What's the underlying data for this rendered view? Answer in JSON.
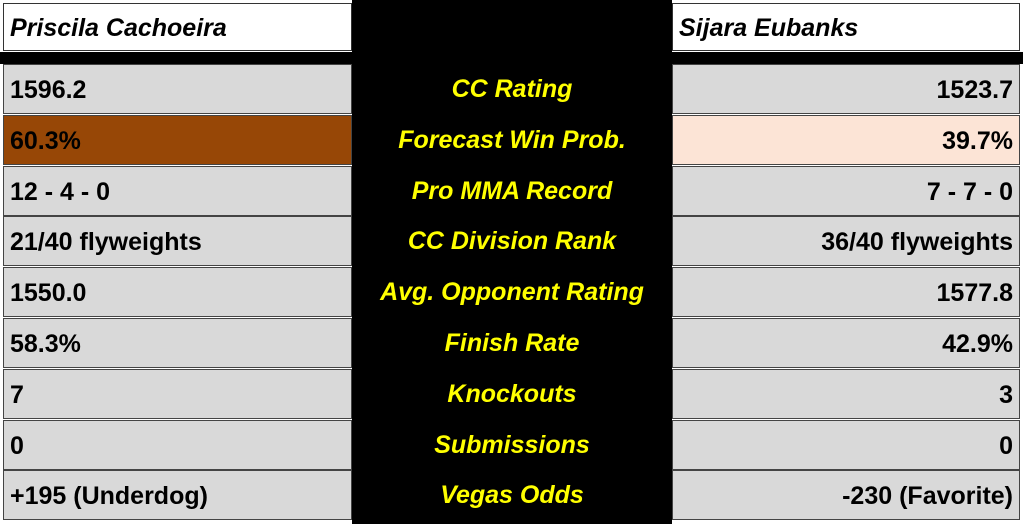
{
  "fighters": {
    "left": "Priscila Cachoeira",
    "right": "Sijara Eubanks"
  },
  "colors": {
    "gray": "#d9d9d9",
    "favored_win_prob": "#974706",
    "underdog_win_prob": "#fce4d6",
    "label_text": "#ffff00"
  },
  "rows": [
    {
      "label": "CC Rating",
      "left": "1596.2",
      "right": "1523.7"
    },
    {
      "label": "Forecast Win Prob.",
      "left": "60.3%",
      "right": "39.7%"
    },
    {
      "label": "Pro MMA Record",
      "left": "12 - 4 - 0",
      "right": "7 - 7 - 0"
    },
    {
      "label": "CC Division Rank",
      "left": "21/40 flyweights",
      "right": "36/40 flyweights"
    },
    {
      "label": "Avg. Opponent Rating",
      "left": "1550.0",
      "right": "1577.8"
    },
    {
      "label": "Finish Rate",
      "left": "58.3%",
      "right": "42.9%"
    },
    {
      "label": "Knockouts",
      "left": "7",
      "right": "3"
    },
    {
      "label": "Submissions",
      "left": "0",
      "right": "0"
    },
    {
      "label": "Vegas Odds",
      "left": "+195 (Underdog)",
      "right": "-230 (Favorite)"
    }
  ]
}
